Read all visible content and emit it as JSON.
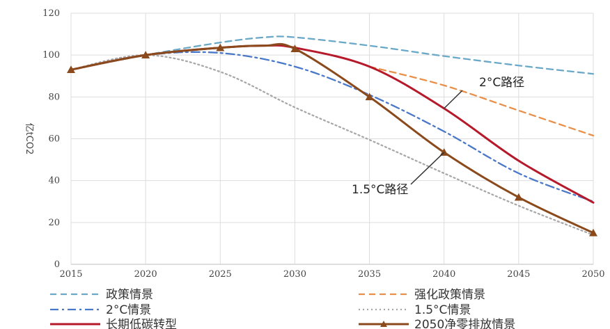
{
  "chart_data": {
    "type": "line",
    "title": "",
    "xlabel": "",
    "ylabel": "亿tCO2",
    "xlim": [
      2015,
      2050
    ],
    "ylim": [
      0,
      120
    ],
    "x_ticks": [
      2015,
      2020,
      2025,
      2030,
      2035,
      2040,
      2045,
      2050
    ],
    "y_ticks": [
      0,
      20,
      40,
      60,
      80,
      100,
      120
    ],
    "grid": "horizontal",
    "legend_position": "bottom",
    "series": [
      {
        "name": "政策情景",
        "color": "#6aa8c8",
        "style": "dashed",
        "x": [
          2015,
          2020,
          2025,
          2028,
          2030,
          2035,
          2040,
          2045,
          2050
        ],
        "y": [
          93,
          100,
          106,
          108.5,
          108.5,
          104.5,
          99.5,
          95,
          91
        ]
      },
      {
        "name": "强化政策情景",
        "color": "#e8904a",
        "style": "dashed",
        "x": [
          2035,
          2040,
          2045,
          2050
        ],
        "y": [
          94.5,
          85.5,
          73.5,
          61.5
        ]
      },
      {
        "name": "2°C情景",
        "color": "#4a78c8",
        "style": "dashdot",
        "x": [
          2015,
          2020,
          2025,
          2030,
          2035,
          2040,
          2045,
          2050
        ],
        "y": [
          93,
          100,
          101,
          94.5,
          81,
          63.5,
          43.5,
          30
        ]
      },
      {
        "name": "1.5°C情景",
        "color": "#a8a8a8",
        "style": "dotted",
        "x": [
          2015,
          2020,
          2025,
          2030,
          2035,
          2040,
          2045,
          2050
        ],
        "y": [
          93,
          100,
          92,
          75,
          59.5,
          43.5,
          28,
          14
        ]
      },
      {
        "name": "长期低碳转型",
        "color": "#b5192a",
        "style": "solid",
        "x": [
          2015,
          2020,
          2025,
          2028,
          2030,
          2035,
          2040,
          2045,
          2050
        ],
        "y": [
          93,
          100,
          103.5,
          104.5,
          103.5,
          94.5,
          74.5,
          49.5,
          29.5
        ]
      },
      {
        "name": "2050净零排放情景",
        "color": "#8b4a1c",
        "style": "solid",
        "marker": "triangle",
        "x": [
          2015,
          2020,
          2025,
          2028,
          2030,
          2035,
          2040,
          2045,
          2050
        ],
        "y": [
          93,
          100,
          103.5,
          104.5,
          103,
          80,
          53.5,
          32,
          15
        ]
      }
    ],
    "annotations": [
      {
        "text": "2°C路径",
        "arrow_to": [
          2040,
          74.5
        ]
      },
      {
        "text": "1.5°C路径",
        "arrow_to": [
          2040,
          53.5
        ]
      }
    ]
  }
}
